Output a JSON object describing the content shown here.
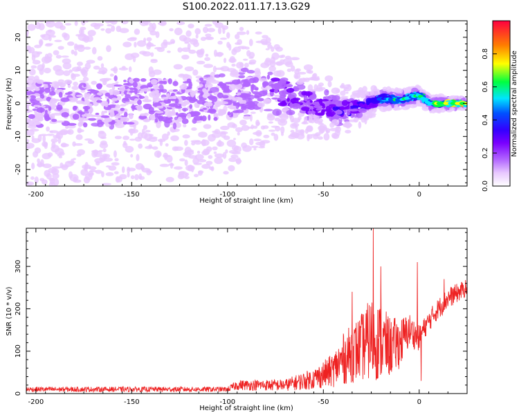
{
  "title": "S100.2022.011.17.13.G29",
  "colors": {
    "snr_line": "#ee2222",
    "colormap": [
      "#ffffff",
      "#e8c8ff",
      "#b266ff",
      "#7a00ff",
      "#3300ff",
      "#0050ff",
      "#00e5ff",
      "#00ff40",
      "#ffff00",
      "#ff7f00",
      "#ff0040"
    ]
  },
  "chart_data": [
    {
      "type": "heatmap",
      "xlabel": "Height of straight line (km)",
      "ylabel": "Frequency (Hz)",
      "xlim": [
        -205,
        25
      ],
      "ylim": [
        -25,
        25
      ],
      "xticks": [
        -200,
        -150,
        -100,
        -50,
        0
      ],
      "yticks": [
        -20,
        -10,
        0,
        10,
        20
      ],
      "colorbar": {
        "label": "Normalized spectral amplitude",
        "range": [
          0.0,
          1.0
        ],
        "ticks": [
          "0.0",
          "0.2",
          "0.4",
          "0.6",
          "0.8"
        ],
        "tick_values": [
          0.0,
          0.2,
          0.4,
          0.6,
          0.8
        ]
      },
      "ridge": [
        {
          "x": -205,
          "y": 0.0
        },
        {
          "x": -150,
          "y": 0.5
        },
        {
          "x": -100,
          "y": 1.5
        },
        {
          "x": -90,
          "y": 3.0
        },
        {
          "x": -80,
          "y": 4.0
        },
        {
          "x": -70,
          "y": 3.0
        },
        {
          "x": -60,
          "y": 0.5
        },
        {
          "x": -50,
          "y": -1.0
        },
        {
          "x": -40,
          "y": -2.0
        },
        {
          "x": -30,
          "y": -1.0
        },
        {
          "x": -20,
          "y": 1.5
        },
        {
          "x": -10,
          "y": 1.0
        },
        {
          "x": 0,
          "y": 2.5
        },
        {
          "x": 5,
          "y": 0.0
        },
        {
          "x": 25,
          "y": 0.0
        }
      ],
      "amplitude": [
        {
          "x": -205,
          "a": 0.18
        },
        {
          "x": -100,
          "a": 0.22
        },
        {
          "x": -70,
          "a": 0.3
        },
        {
          "x": -50,
          "a": 0.35
        },
        {
          "x": -30,
          "a": 0.42
        },
        {
          "x": -20,
          "a": 0.6
        },
        {
          "x": 0,
          "a": 0.75
        },
        {
          "x": 25,
          "a": 0.9
        }
      ],
      "spread": [
        {
          "x": -205,
          "s": 20
        },
        {
          "x": -100,
          "s": 18
        },
        {
          "x": -70,
          "s": 10
        },
        {
          "x": -40,
          "s": 6
        },
        {
          "x": -20,
          "s": 2.5
        },
        {
          "x": 25,
          "s": 1.2
        }
      ]
    },
    {
      "type": "line",
      "xlabel": "Height of straight line (km)",
      "ylabel": "SNR (10 * v/v)",
      "xlim": [
        -205,
        25
      ],
      "ylim": [
        0,
        390
      ],
      "xticks": [
        -200,
        -150,
        -100,
        -50,
        0
      ],
      "yticks": [
        0,
        100,
        200,
        300
      ],
      "envelope": [
        {
          "x": -205,
          "base": 10,
          "noise": 6
        },
        {
          "x": -100,
          "base": 10,
          "noise": 6
        },
        {
          "x": -95,
          "base": 20,
          "noise": 12
        },
        {
          "x": -70,
          "base": 20,
          "noise": 14
        },
        {
          "x": -55,
          "base": 35,
          "noise": 25
        },
        {
          "x": -45,
          "base": 55,
          "noise": 40
        },
        {
          "x": -40,
          "base": 80,
          "noise": 60
        },
        {
          "x": -30,
          "base": 110,
          "noise": 80
        },
        {
          "x": -25,
          "base": 130,
          "noise": 100
        },
        {
          "x": -20,
          "base": 120,
          "noise": 90
        },
        {
          "x": -15,
          "base": 110,
          "noise": 70
        },
        {
          "x": -10,
          "base": 120,
          "noise": 60
        },
        {
          "x": -5,
          "base": 150,
          "noise": 40
        },
        {
          "x": 0,
          "base": 130,
          "noise": 30
        },
        {
          "x": 2,
          "base": 150,
          "noise": 25
        },
        {
          "x": 8,
          "base": 190,
          "noise": 25
        },
        {
          "x": 15,
          "base": 225,
          "noise": 25
        },
        {
          "x": 25,
          "base": 250,
          "noise": 20
        }
      ],
      "spikes": [
        {
          "x": -24,
          "y": 390
        },
        {
          "x": -1,
          "y": 310
        },
        {
          "x": -20,
          "y": 300
        },
        {
          "x": -35,
          "y": 240
        },
        {
          "x": 1,
          "y": 30
        },
        {
          "x": 13,
          "y": 270
        }
      ]
    }
  ]
}
